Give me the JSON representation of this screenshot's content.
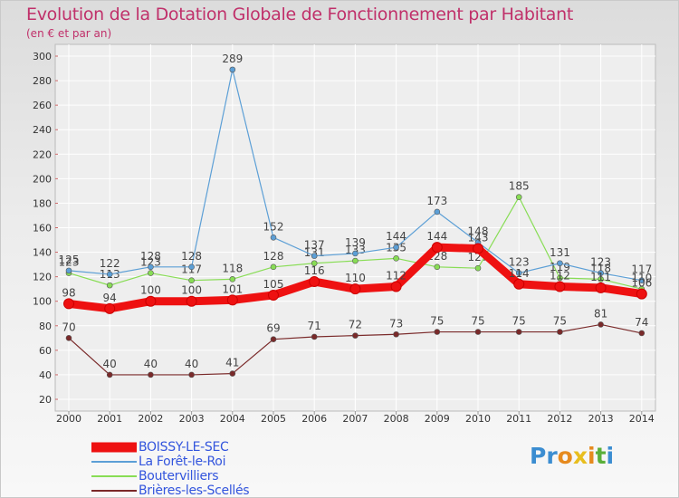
{
  "title": "Evolution de la Dotation Globale de Fonctionnement par Habitant",
  "subtitle": "(en € et par an)",
  "logo": [
    "P",
    "r",
    "o",
    "x",
    "i",
    "t",
    "i"
  ],
  "chart_data": {
    "type": "line",
    "categories": [
      "2000",
      "2001",
      "2002",
      "2003",
      "2004",
      "2005",
      "2006",
      "2007",
      "2008",
      "2009",
      "2010",
      "2011",
      "2012",
      "2013",
      "2014"
    ],
    "ylim": [
      20,
      300
    ],
    "yticks": [
      20,
      40,
      60,
      80,
      100,
      120,
      140,
      160,
      180,
      200,
      220,
      240,
      260,
      280,
      300
    ],
    "series": [
      {
        "name": "Brières-les-Scellés",
        "color": "#7a2a2a",
        "values": [
          70,
          40,
          40,
          40,
          41,
          69,
          71,
          72,
          73,
          75,
          75,
          75,
          75,
          81,
          74
        ]
      },
      {
        "name": "Boutervilliers",
        "color": "#88dd55",
        "values": [
          123,
          113,
          123,
          117,
          118,
          128,
          131,
          133,
          135,
          128,
          127,
          185,
          119,
          118,
          110
        ]
      },
      {
        "name": "La Forêt-le-Roi",
        "color": "#5c9fd6",
        "values": [
          125,
          122,
          128,
          128,
          289,
          152,
          137,
          139,
          144,
          173,
          148,
          123,
          131,
          123,
          117
        ]
      },
      {
        "name": "BOISSY-LE-SEC",
        "color": "#ee1111",
        "values": [
          98,
          94,
          100,
          100,
          101,
          105,
          116,
          110,
          112,
          144,
          143,
          114,
          112,
          111,
          106
        ]
      }
    ],
    "legend": [
      "BOISSY-LE-SEC",
      "La Forêt-le-Roi",
      "Boutervilliers",
      "Brières-les-Scellés"
    ],
    "legend_colors": [
      "#ee1111",
      "#5c9fd6",
      "#88dd55",
      "#7a2a2a"
    ]
  }
}
